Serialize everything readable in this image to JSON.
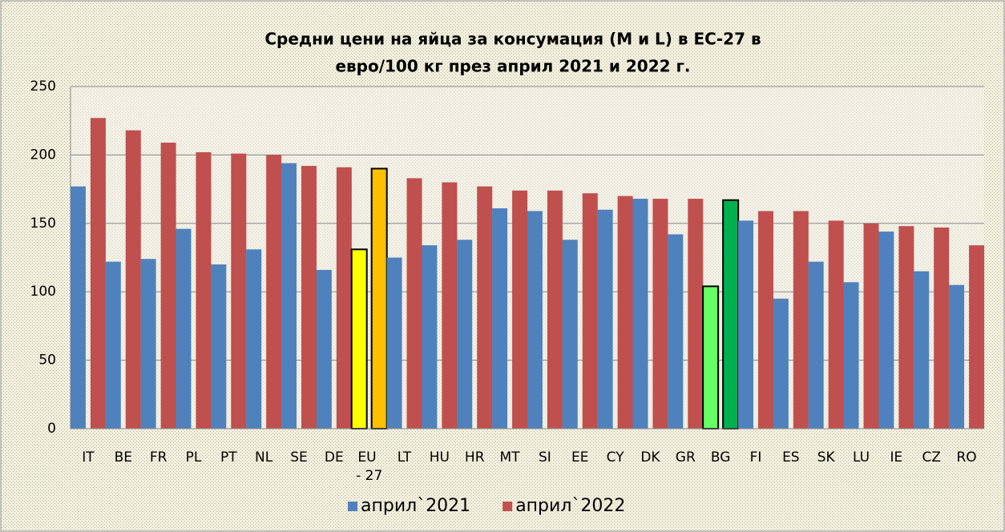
{
  "chart_data": {
    "type": "bar",
    "title": [
      "Средни цени на яйца за консумация (M и L) в ЕС-27 в",
      "евро/100 кг през април 2021 и 2022 г."
    ],
    "categories": [
      "IT",
      "BE",
      "FR",
      "PL",
      "PT",
      "NL",
      "SE",
      "DE",
      "EU - 27",
      "LT",
      "HU",
      "HR",
      "MT",
      "SI",
      "EE",
      "CY",
      "DK",
      "GR",
      "BG",
      "FI",
      "ES",
      "SK",
      "LU",
      "IE",
      "CZ",
      "RO"
    ],
    "series": [
      {
        "name": "април`2021",
        "color": "#4f81bd",
        "colors": [
          "#4f81bd",
          "#4f81bd",
          "#4f81bd",
          "#4f81bd",
          "#4f81bd",
          "#4f81bd",
          "#4f81bd",
          "#4f81bd",
          "#ffff00",
          "#4f81bd",
          "#4f81bd",
          "#4f81bd",
          "#4f81bd",
          "#4f81bd",
          "#4f81bd",
          "#4f81bd",
          "#4f81bd",
          "#4f81bd",
          "#66ff66",
          "#4f81bd",
          "#4f81bd",
          "#4f81bd",
          "#4f81bd",
          "#4f81bd",
          "#4f81bd",
          "#4f81bd"
        ],
        "values": [
          177,
          122,
          124,
          146,
          120,
          131,
          194,
          116,
          131,
          125,
          134,
          138,
          161,
          159,
          138,
          160,
          168,
          142,
          104,
          152,
          95,
          122,
          107,
          144,
          115,
          105
        ]
      },
      {
        "name": "април`2022",
        "color": "#c0504d",
        "colors": [
          "#c0504d",
          "#c0504d",
          "#c0504d",
          "#c0504d",
          "#c0504d",
          "#c0504d",
          "#c0504d",
          "#c0504d",
          "#ffc000",
          "#c0504d",
          "#c0504d",
          "#c0504d",
          "#c0504d",
          "#c0504d",
          "#c0504d",
          "#c0504d",
          "#c0504d",
          "#c0504d",
          "#00b050",
          "#c0504d",
          "#c0504d",
          "#c0504d",
          "#c0504d",
          "#c0504d",
          "#c0504d",
          "#c0504d"
        ],
        "values": [
          227,
          218,
          209,
          202,
          201,
          200,
          192,
          191,
          190,
          183,
          180,
          177,
          174,
          174,
          172,
          170,
          168,
          168,
          167,
          159,
          159,
          152,
          150,
          148,
          147,
          134
        ]
      }
    ],
    "ylim": [
      0,
      250
    ],
    "yticks": [
      0,
      50,
      100,
      150,
      200,
      250
    ],
    "grid": true,
    "legend": "bottom"
  }
}
